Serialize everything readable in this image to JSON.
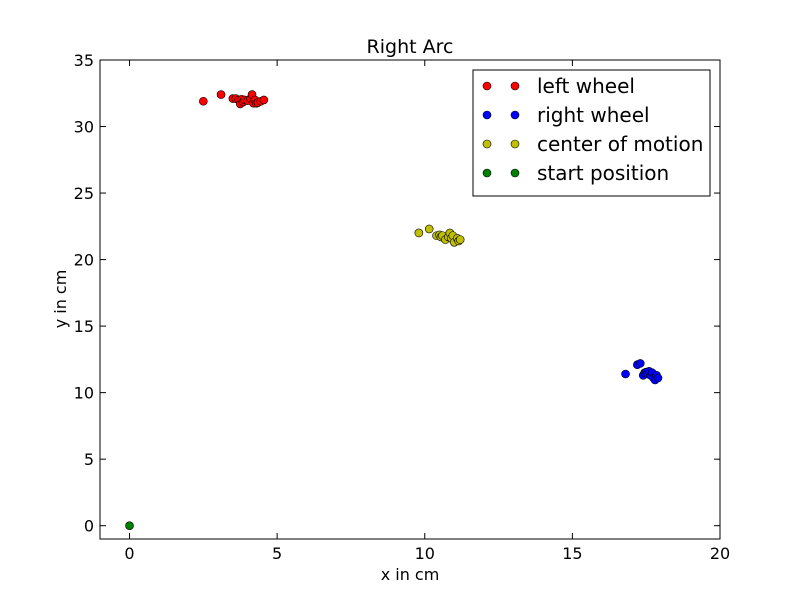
{
  "chart_data": {
    "type": "scatter",
    "title": "Right Arc",
    "xlabel": "x in cm",
    "ylabel": "y in cm",
    "xlim": [
      -1,
      20
    ],
    "ylim": [
      -1,
      35
    ],
    "x_ticks": [
      0,
      5,
      10,
      15,
      20
    ],
    "y_ticks": [
      0,
      5,
      10,
      15,
      20,
      25,
      30,
      35
    ],
    "grid": false,
    "legend_position": "top-right",
    "series": [
      {
        "name": "left wheel",
        "color": "#ff0000",
        "points": [
          [
            2.5,
            31.9
          ],
          [
            3.1,
            32.4
          ],
          [
            3.5,
            32.1
          ],
          [
            3.6,
            32.1
          ],
          [
            3.7,
            32.0
          ],
          [
            3.75,
            31.7
          ],
          [
            3.8,
            32.05
          ],
          [
            3.85,
            31.85
          ],
          [
            3.9,
            32.0
          ],
          [
            4.0,
            31.95
          ],
          [
            4.1,
            32.1
          ],
          [
            4.15,
            32.4
          ],
          [
            4.2,
            31.75
          ],
          [
            4.25,
            32.0
          ],
          [
            4.3,
            31.75
          ],
          [
            4.35,
            31.8
          ],
          [
            4.45,
            31.9
          ],
          [
            4.55,
            32.0
          ]
        ]
      },
      {
        "name": "right wheel",
        "color": "#0000ff",
        "points": [
          [
            16.8,
            11.4
          ],
          [
            17.2,
            12.1
          ],
          [
            17.3,
            12.2
          ],
          [
            17.4,
            11.3
          ],
          [
            17.45,
            11.5
          ],
          [
            17.5,
            11.55
          ],
          [
            17.55,
            11.4
          ],
          [
            17.6,
            11.6
          ],
          [
            17.65,
            11.3
          ],
          [
            17.7,
            11.5
          ],
          [
            17.75,
            11.1
          ],
          [
            17.8,
            10.95
          ],
          [
            17.85,
            11.3
          ],
          [
            17.9,
            11.1
          ]
        ]
      },
      {
        "name": "center of motion",
        "color": "#bfbf00",
        "points": [
          [
            9.8,
            22.0
          ],
          [
            10.15,
            22.3
          ],
          [
            10.4,
            21.8
          ],
          [
            10.5,
            21.85
          ],
          [
            10.55,
            21.7
          ],
          [
            10.6,
            21.8
          ],
          [
            10.7,
            21.5
          ],
          [
            10.8,
            21.7
          ],
          [
            10.85,
            22.0
          ],
          [
            10.9,
            21.6
          ],
          [
            10.95,
            21.8
          ],
          [
            11.0,
            21.3
          ],
          [
            11.1,
            21.6
          ],
          [
            11.15,
            21.4
          ],
          [
            11.2,
            21.5
          ]
        ]
      },
      {
        "name": "start position",
        "color": "#007f00",
        "points": [
          [
            0.0,
            0.0
          ]
        ]
      }
    ]
  }
}
